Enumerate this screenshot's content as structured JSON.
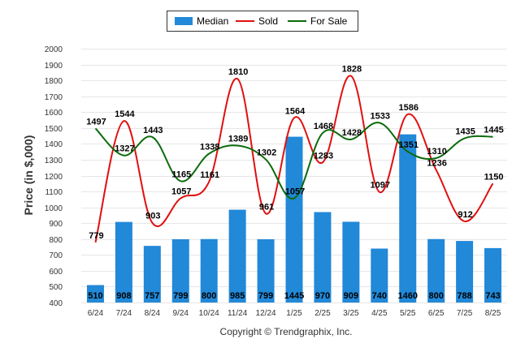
{
  "chart_data": {
    "type": "bar",
    "categories": [
      "6/24",
      "7/24",
      "8/24",
      "9/24",
      "10/24",
      "11/24",
      "12/24",
      "1/25",
      "2/25",
      "3/25",
      "4/25",
      "5/25",
      "6/25",
      "7/25",
      "8/25"
    ],
    "series": [
      {
        "name": "Median",
        "type": "bar",
        "color": "#2288d8",
        "values": [
          510,
          908,
          757,
          799,
          800,
          985,
          799,
          1445,
          970,
          909,
          740,
          1460,
          800,
          788,
          743
        ]
      },
      {
        "name": "Sold",
        "type": "line",
        "color": "#e01010",
        "values": [
          779,
          1544,
          903,
          1057,
          1161,
          1810,
          961,
          1564,
          1283,
          1828,
          1097,
          1586,
          1236,
          912,
          1150
        ]
      },
      {
        "name": "For Sale",
        "type": "line",
        "color": "#0b6b0b",
        "values": [
          1497,
          1327,
          1443,
          1165,
          1338,
          1389,
          1302,
          1057,
          1468,
          1428,
          1533,
          1351,
          1310,
          1435,
          1445
        ]
      }
    ],
    "ylabel": "Price (in $,000)",
    "xlabel": "",
    "ylim": [
      400,
      2000
    ],
    "yticks": [
      400,
      500,
      600,
      700,
      800,
      900,
      1000,
      1100,
      1200,
      1300,
      1400,
      1500,
      1600,
      1700,
      1800,
      1900,
      2000
    ],
    "grid": true,
    "legend_position": "top-center",
    "credit": "Copyright © Trendgraphix, Inc."
  }
}
